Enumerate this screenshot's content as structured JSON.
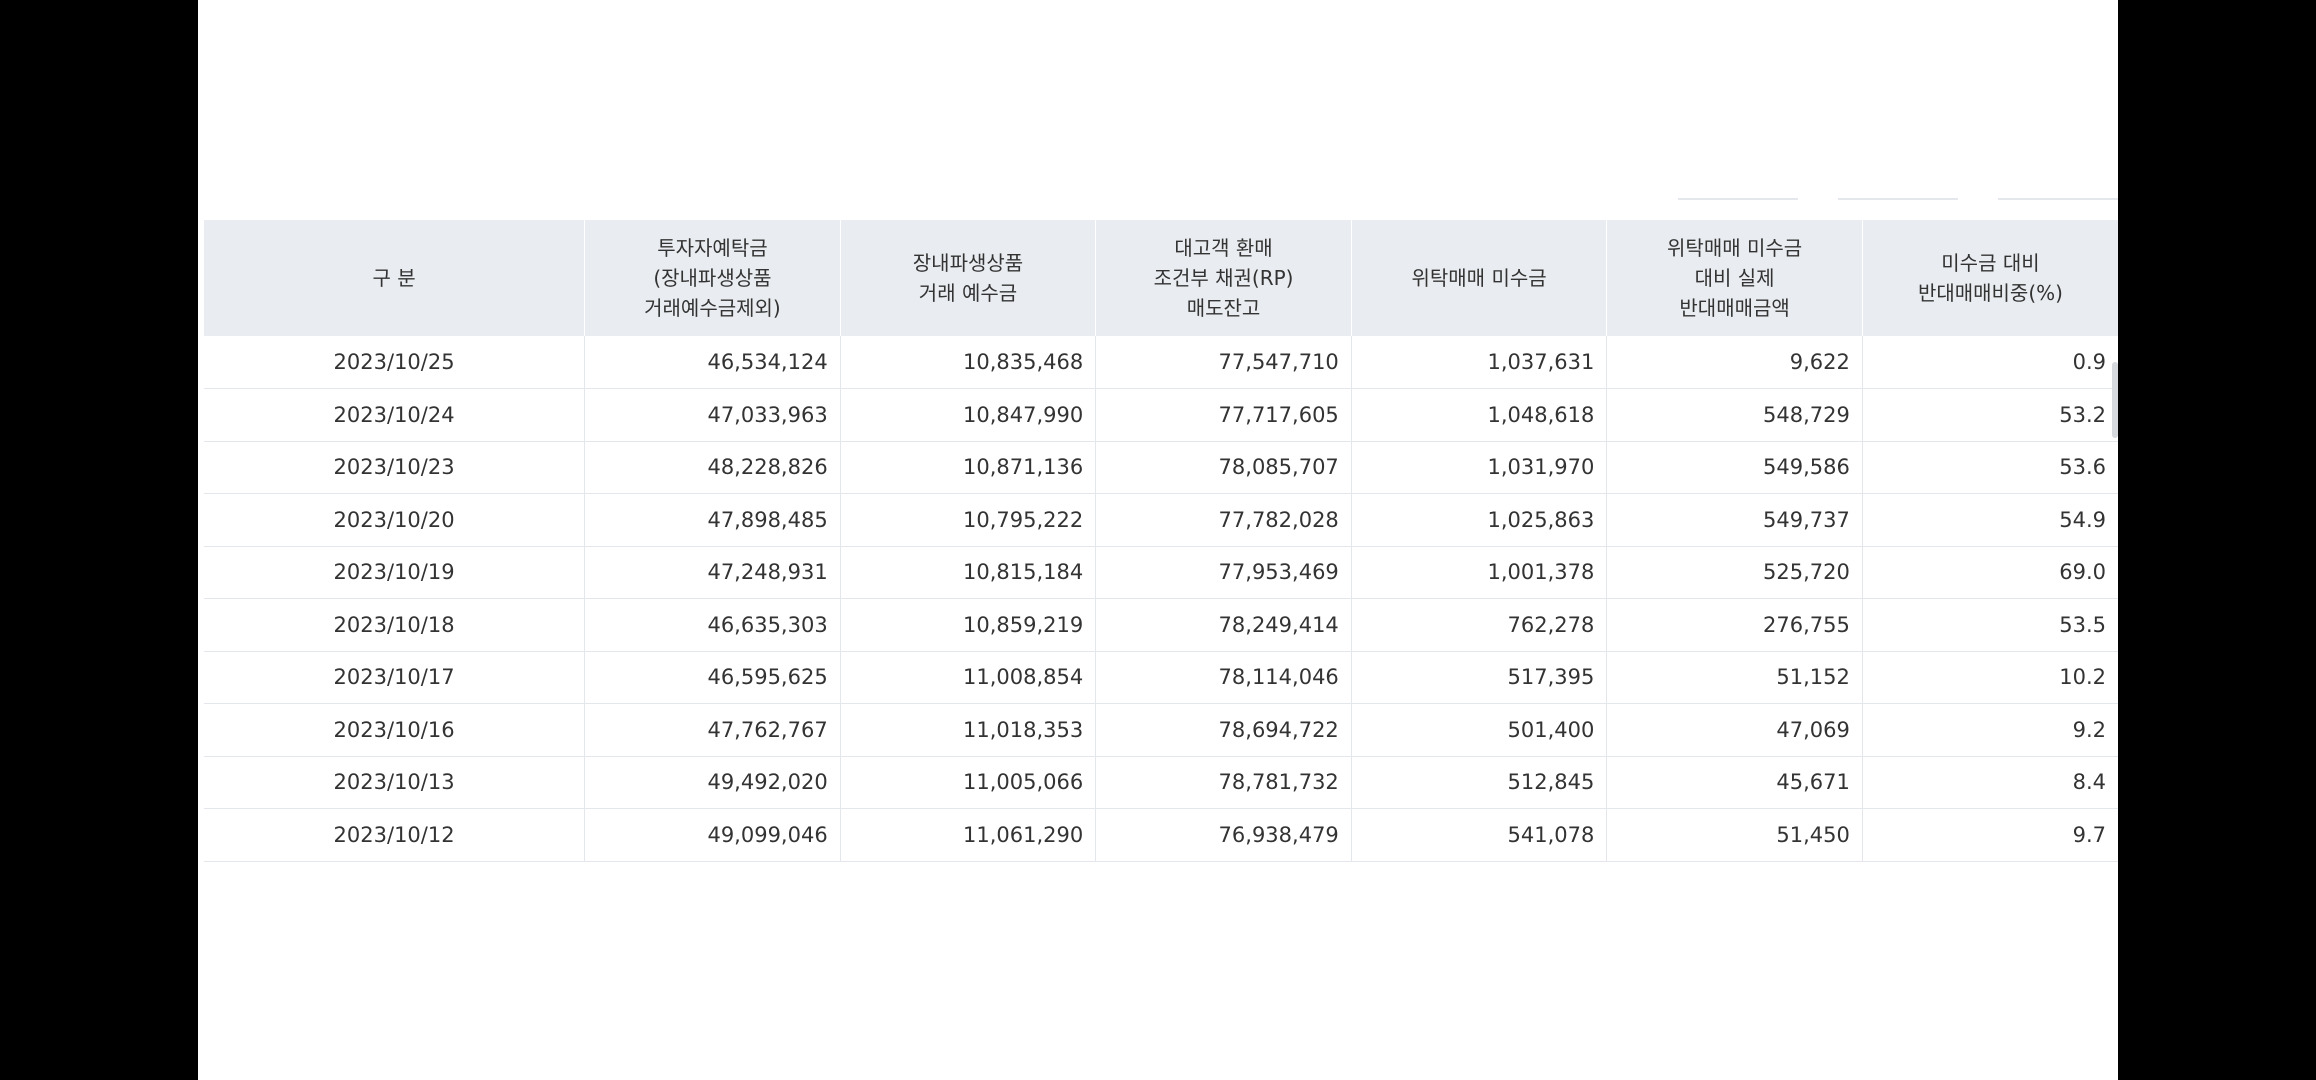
{
  "table": {
    "headers": [
      [
        "구 분"
      ],
      [
        "투자자예탁금",
        "(장내파생상품",
        "거래예수금제외)"
      ],
      [
        "장내파생상품",
        "거래 예수금"
      ],
      [
        "대고객 환매",
        "조건부 채권(RP)",
        "매도잔고"
      ],
      [
        "위탁매매 미수금"
      ],
      [
        "위탁매매 미수금",
        "대비 실제",
        "반대매매금액"
      ],
      [
        "미수금 대비",
        "반대매매비중(%)"
      ]
    ],
    "rows": [
      [
        "2023/10/25",
        "46,534,124",
        "10,835,468",
        "77,547,710",
        "1,037,631",
        "9,622",
        "0.9"
      ],
      [
        "2023/10/24",
        "47,033,963",
        "10,847,990",
        "77,717,605",
        "1,048,618",
        "548,729",
        "53.2"
      ],
      [
        "2023/10/23",
        "48,228,826",
        "10,871,136",
        "78,085,707",
        "1,031,970",
        "549,586",
        "53.6"
      ],
      [
        "2023/10/20",
        "47,898,485",
        "10,795,222",
        "77,782,028",
        "1,025,863",
        "549,737",
        "54.9"
      ],
      [
        "2023/10/19",
        "47,248,931",
        "10,815,184",
        "77,953,469",
        "1,001,378",
        "525,720",
        "69.0"
      ],
      [
        "2023/10/18",
        "46,635,303",
        "10,859,219",
        "78,249,414",
        "762,278",
        "276,755",
        "53.5"
      ],
      [
        "2023/10/17",
        "46,595,625",
        "11,008,854",
        "78,114,046",
        "517,395",
        "51,152",
        "10.2"
      ],
      [
        "2023/10/16",
        "47,762,767",
        "11,018,353",
        "78,694,722",
        "501,400",
        "47,069",
        "9.2"
      ],
      [
        "2023/10/13",
        "49,492,020",
        "11,005,066",
        "78,781,732",
        "512,845",
        "45,671",
        "8.4"
      ],
      [
        "2023/10/12",
        "49,099,046",
        "11,061,290",
        "76,938,479",
        "541,078",
        "51,450",
        "9.7"
      ]
    ]
  }
}
